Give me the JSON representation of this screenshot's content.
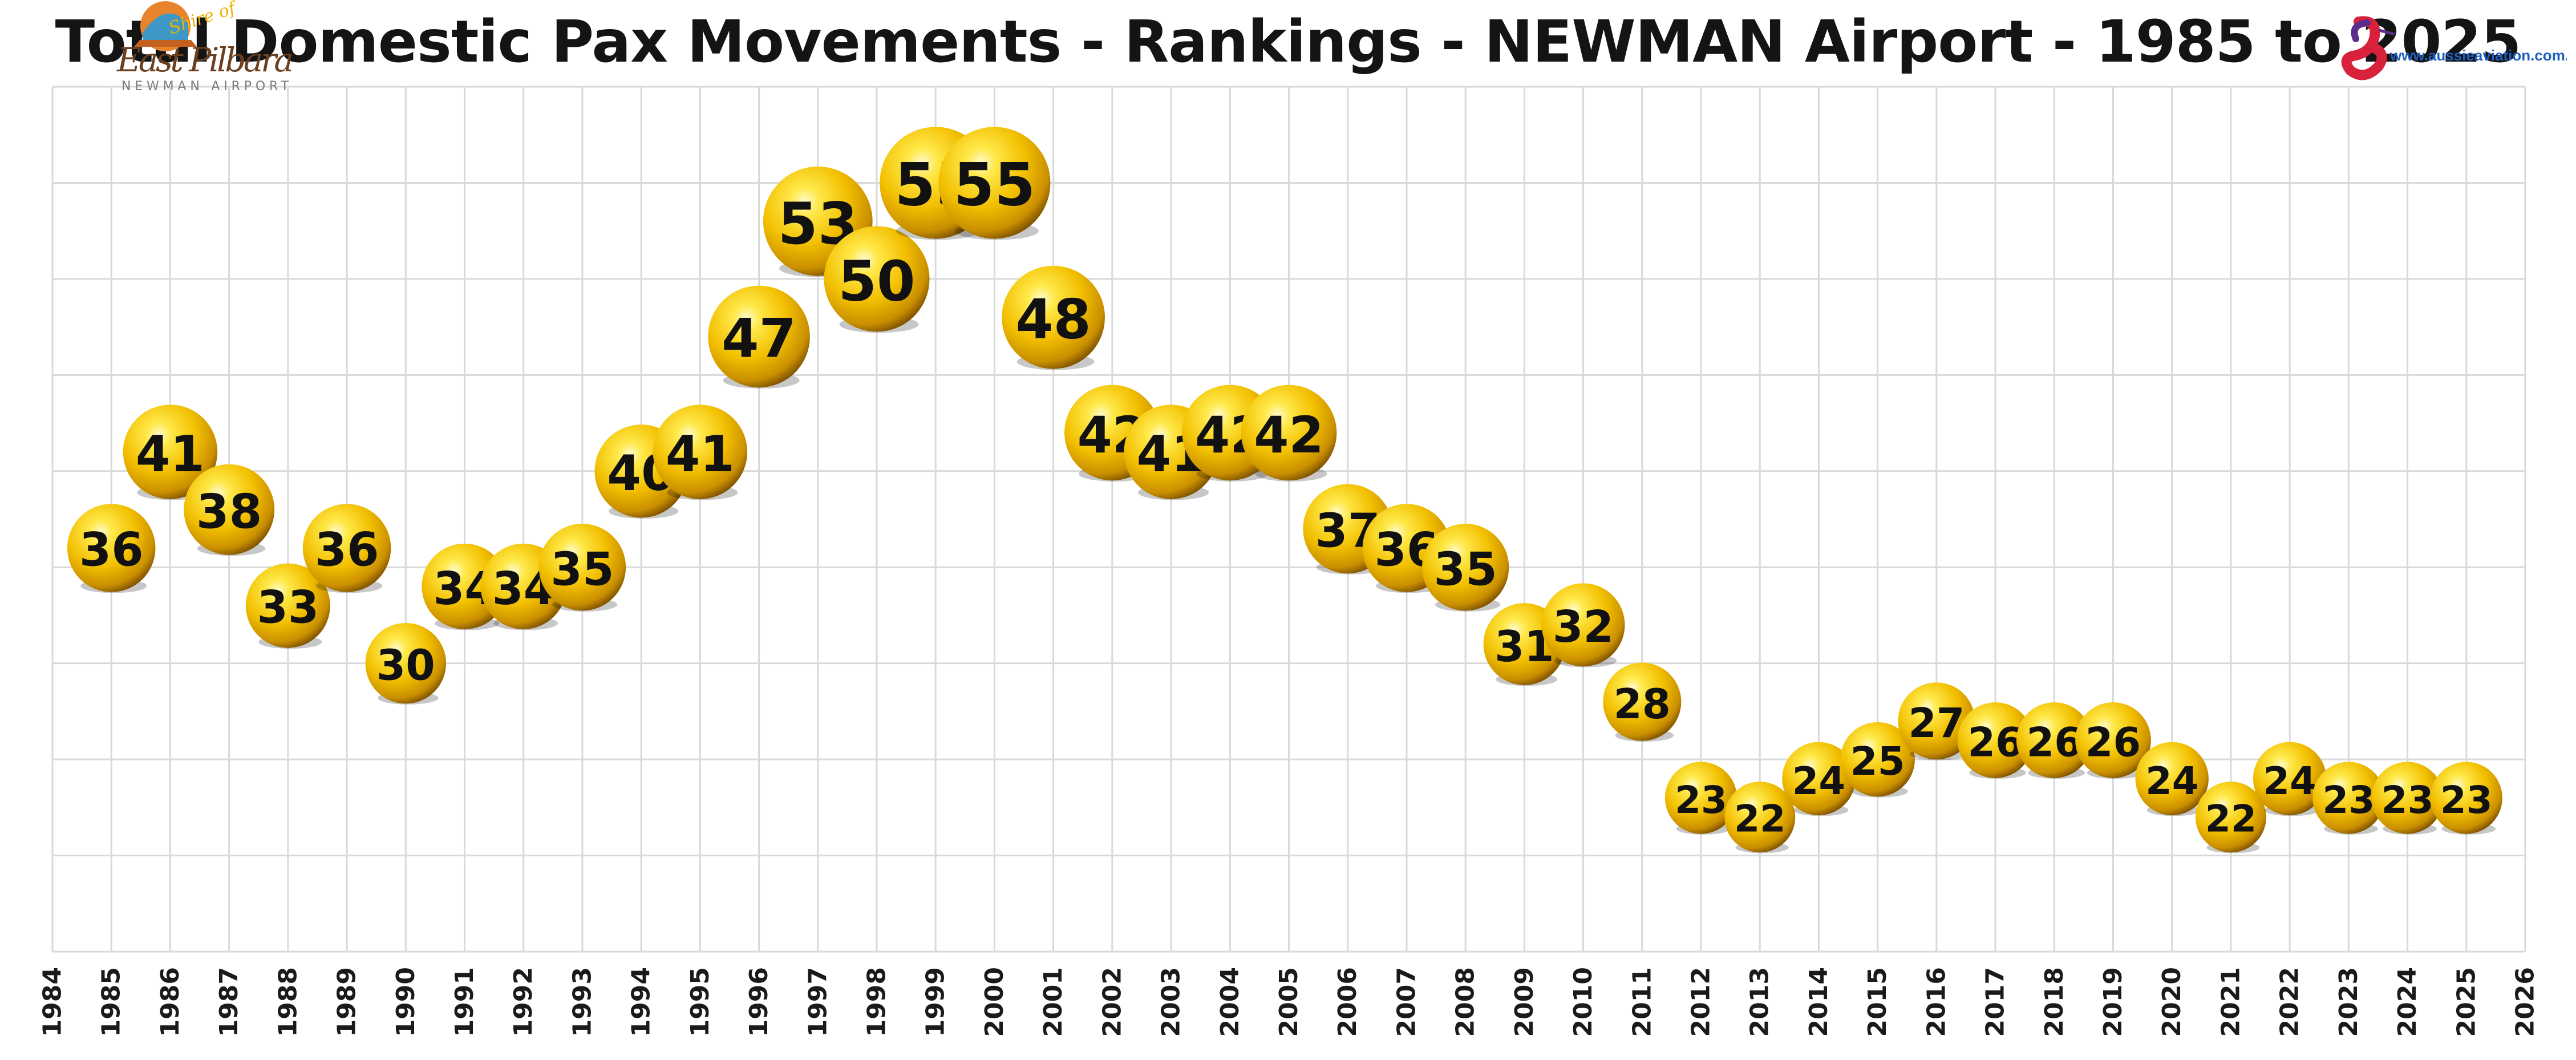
{
  "header": {
    "title": "Total Domestic Pax Movements - Rankings - NEWMAN Airport - 1985 to 2025",
    "left_logo": {
      "line1": "Shire of",
      "line2": "East Pilbara",
      "line3": "NEWMAN AIRPORT"
    },
    "right_logo": {
      "url": "www.aussieaviation.com.au"
    }
  },
  "colors": {
    "bubble_light": "#fff6a0",
    "bubble_mid": "#f5c400",
    "bubble_dark": "#8a5a00",
    "grid": "#d9d9d9",
    "title": "#141414",
    "logo_brown": "#8b4513",
    "logo_orange": "#e8842c",
    "aussie_red": "#d8213a",
    "aussie_purple": "#5b2d8c",
    "aussie_blue": "#1f5fbf"
  },
  "chart_data": {
    "type": "scatter",
    "title": "Total Domestic Pax Movements - Rankings - NEWMAN Airport - 1985 to 2025",
    "xlabel": "",
    "ylabel": "",
    "xlim": [
      1984,
      2026
    ],
    "x_ticks": [
      "1984",
      "1985",
      "1986",
      "1987",
      "1988",
      "1989",
      "1990",
      "1991",
      "1992",
      "1993",
      "1994",
      "1995",
      "1996",
      "1997",
      "1998",
      "1999",
      "2000",
      "2001",
      "2002",
      "2003",
      "2004",
      "2005",
      "2006",
      "2007",
      "2008",
      "2009",
      "2010",
      "2011",
      "2012",
      "2013",
      "2014",
      "2015",
      "2016",
      "2017",
      "2018",
      "2019",
      "2020",
      "2021",
      "2022",
      "2023",
      "2024",
      "2025",
      "2026"
    ],
    "ylim": [
      15,
      60
    ],
    "y_ticks_shown": false,
    "grid": true,
    "series": [
      {
        "x": [
          1985,
          1986,
          1987,
          1988,
          1989,
          1990,
          1991,
          1992,
          1993,
          1994,
          1995,
          1996,
          1997,
          1998,
          1999,
          2000,
          2001,
          2002,
          2003,
          2004,
          2005,
          2006,
          2007,
          2008,
          2009,
          2010,
          2011,
          2012,
          2013,
          2014,
          2015,
          2016,
          2017,
          2018,
          2019,
          2020,
          2021,
          2022,
          2023,
          2024,
          2025
        ],
        "values": [
          36,
          41,
          38,
          33,
          36,
          30,
          34,
          34,
          35,
          40,
          41,
          47,
          53,
          50,
          55,
          55,
          48,
          42,
          41,
          42,
          42,
          37,
          36,
          35,
          31,
          32,
          28,
          23,
          22,
          24,
          25,
          27,
          26,
          26,
          26,
          24,
          22,
          24,
          23,
          23,
          23
        ],
        "labels": [
          "36",
          "41",
          "38",
          "33",
          "36",
          "30",
          "34",
          "34",
          "35",
          "40",
          "41",
          "47",
          "53",
          "50",
          "55",
          "55",
          "48",
          "42",
          "41",
          "42",
          "42",
          "37",
          "36",
          "35",
          "31",
          "32",
          "28",
          "23",
          "22",
          "24",
          "25",
          "27",
          "26",
          "26",
          "26",
          "24",
          "22",
          "24",
          "23",
          "23",
          "23"
        ]
      }
    ]
  }
}
